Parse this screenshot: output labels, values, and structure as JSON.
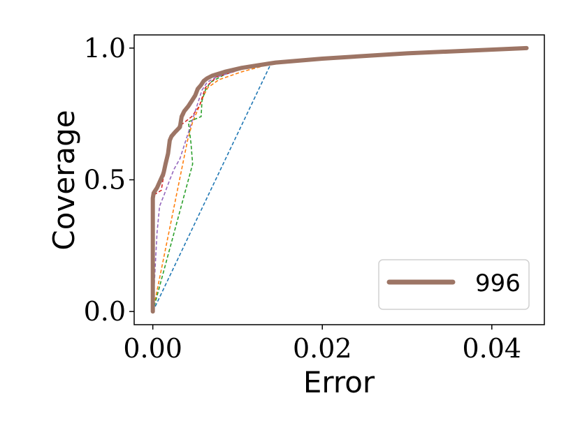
{
  "chart_data": {
    "type": "line",
    "title": "",
    "xlabel": "Error",
    "ylabel": "Coverage",
    "xlim": [
      -0.0022,
      0.0462
    ],
    "ylim": [
      -0.05,
      1.05
    ],
    "xticks": [
      0.0,
      0.02,
      0.04
    ],
    "xtick_labels": [
      "0.00",
      "0.02",
      "0.04"
    ],
    "yticks": [
      0.0,
      0.5,
      1.0
    ],
    "ytick_labels": [
      "0.0",
      "0.5",
      "1.0"
    ],
    "grid": false,
    "legend": {
      "position": "bottom-right",
      "entries": [
        "996"
      ]
    },
    "series": [
      {
        "name": "996",
        "color": "#9d7565",
        "style": "solid",
        "x": [
          0.0,
          0.0,
          0.0001,
          0.0005,
          0.0012,
          0.0013,
          0.0015,
          0.0018,
          0.002,
          0.0022,
          0.0026,
          0.0032,
          0.0033,
          0.0034,
          0.0037,
          0.0042,
          0.0046,
          0.005,
          0.0053,
          0.0057,
          0.006,
          0.0064,
          0.007,
          0.0085,
          0.0105,
          0.0125,
          0.0145,
          0.02,
          0.03,
          0.0441
        ],
        "y": [
          0.0,
          0.43,
          0.45,
          0.47,
          0.52,
          0.53,
          0.56,
          0.6,
          0.65,
          0.665,
          0.68,
          0.7,
          0.72,
          0.74,
          0.76,
          0.78,
          0.8,
          0.82,
          0.845,
          0.86,
          0.875,
          0.885,
          0.895,
          0.91,
          0.925,
          0.935,
          0.945,
          0.96,
          0.98,
          1.0
        ]
      },
      {
        "color": "#1f77b4",
        "style": "dashed",
        "x": [
          0.0,
          0.014,
          0.02,
          0.03,
          0.0441
        ],
        "y": [
          0.0,
          0.945,
          0.96,
          0.98,
          1.0
        ]
      },
      {
        "color": "#ff7f0e",
        "style": "dashed",
        "x": [
          0.0,
          0.0041,
          0.0047,
          0.0055,
          0.006,
          0.0065,
          0.0078,
          0.0105,
          0.0145,
          0.02,
          0.03,
          0.0441
        ],
        "y": [
          0.0,
          0.65,
          0.72,
          0.78,
          0.82,
          0.85,
          0.88,
          0.91,
          0.945,
          0.96,
          0.98,
          1.0
        ]
      },
      {
        "color": "#2ca02c",
        "style": "dashed",
        "x": [
          0.0,
          0.0047,
          0.0045,
          0.0042,
          0.0057,
          0.0058,
          0.0062,
          0.0068,
          0.0085,
          0.0105,
          0.0145,
          0.02,
          0.03,
          0.0441
        ],
        "y": [
          0.0,
          0.56,
          0.64,
          0.72,
          0.74,
          0.8,
          0.84,
          0.87,
          0.9,
          0.92,
          0.945,
          0.96,
          0.98,
          1.0
        ]
      },
      {
        "color": "#d62728",
        "style": "dashed",
        "x": [
          0.0,
          0.0,
          0.001,
          0.0012,
          0.0014,
          0.0016,
          0.002,
          0.0022,
          0.003,
          0.0038,
          0.0046,
          0.0055,
          0.0062,
          0.0075,
          0.0105,
          0.0145,
          0.02,
          0.03,
          0.0441
        ],
        "y": [
          0.0,
          0.44,
          0.46,
          0.5,
          0.52,
          0.58,
          0.62,
          0.66,
          0.7,
          0.72,
          0.74,
          0.78,
          0.85,
          0.89,
          0.92,
          0.945,
          0.96,
          0.98,
          1.0
        ]
      },
      {
        "color": "#9467bd",
        "style": "dashed",
        "x": [
          0.0,
          0.0005,
          0.0008,
          0.0013,
          0.002,
          0.0025,
          0.0032,
          0.004,
          0.0046,
          0.0052,
          0.0058,
          0.0064,
          0.0075,
          0.0105,
          0.0145,
          0.02,
          0.03,
          0.0441
        ],
        "y": [
          0.0,
          0.3,
          0.4,
          0.44,
          0.5,
          0.54,
          0.58,
          0.66,
          0.72,
          0.78,
          0.84,
          0.87,
          0.89,
          0.92,
          0.945,
          0.96,
          0.98,
          1.0
        ]
      },
      {
        "color": "#8c564b",
        "style": "dashed",
        "x": [
          0.0,
          0.0,
          0.0005,
          0.0012,
          0.0015,
          0.002,
          0.0026,
          0.0033,
          0.0042,
          0.005,
          0.0057,
          0.0064,
          0.0085,
          0.0125,
          0.02,
          0.03,
          0.0441
        ],
        "y": [
          0.0,
          0.43,
          0.47,
          0.52,
          0.56,
          0.65,
          0.68,
          0.72,
          0.78,
          0.82,
          0.86,
          0.885,
          0.91,
          0.935,
          0.96,
          0.98,
          1.0
        ]
      }
    ]
  }
}
